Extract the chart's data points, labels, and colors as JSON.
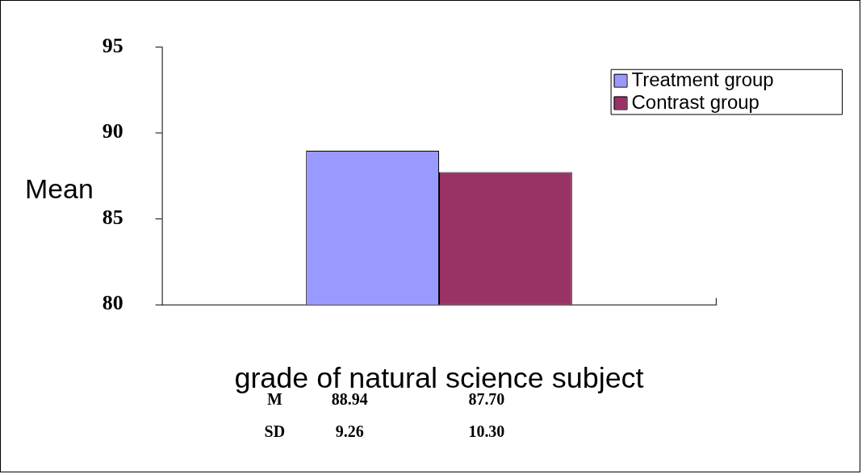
{
  "chart_data": {
    "type": "bar",
    "ylabel": "Mean",
    "categories": [
      "grade of natural science subject"
    ],
    "series": [
      {
        "name": "Treatment group",
        "color": "#9999ff",
        "values": [
          88.94
        ]
      },
      {
        "name": "Contrast group",
        "color": "#993366",
        "values": [
          87.7
        ]
      }
    ],
    "ylim": [
      80,
      95
    ],
    "yticks": [
      80,
      85,
      90,
      95
    ],
    "grid": false,
    "legend": "top right",
    "annotations": [
      "M",
      "88.94",
      "87.70",
      "SD",
      "9.26",
      "10.30"
    ]
  }
}
